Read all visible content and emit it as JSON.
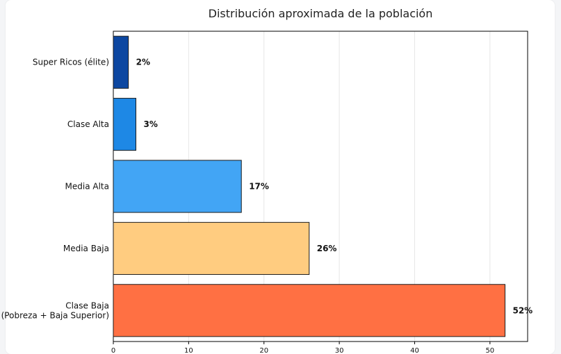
{
  "chart_data": {
    "type": "bar",
    "orientation": "horizontal",
    "title": "Distribución aproximada de la población",
    "xlabel": "",
    "ylabel": "",
    "categories": [
      "Super Ricos (élite)",
      "Clase Alta",
      "Media Alta",
      "Media Baja",
      "Clase Baja\n(Pobreza + Baja Superior)"
    ],
    "values": [
      2,
      3,
      17,
      26,
      52
    ],
    "data_labels": [
      "2%",
      "3%",
      "17%",
      "26%",
      "52%"
    ],
    "colors": [
      "#0d47a1",
      "#1e88e5",
      "#42a5f5",
      "#ffcc80",
      "#ff7043"
    ],
    "xlim": [
      0,
      55
    ],
    "xticks": [
      0,
      10,
      20,
      30,
      40,
      50
    ],
    "grid": "vertical"
  }
}
